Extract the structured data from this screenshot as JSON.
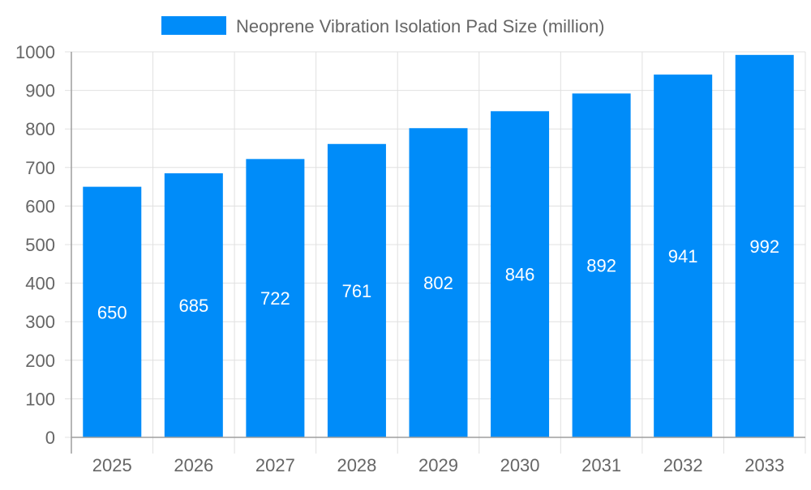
{
  "chart_data": {
    "type": "bar",
    "title": "",
    "xlabel": "",
    "ylabel": "",
    "categories": [
      "2025",
      "2026",
      "2027",
      "2028",
      "2029",
      "2030",
      "2031",
      "2032",
      "2033"
    ],
    "series": [
      {
        "name": "Neoprene Vibration Isolation Pad Size (million)",
        "values": [
          650,
          685,
          722,
          761,
          802,
          846,
          892,
          941,
          992
        ]
      }
    ],
    "ylim": [
      0,
      1000
    ],
    "yticks": [
      0,
      100,
      200,
      300,
      400,
      500,
      600,
      700,
      800,
      900,
      1000
    ],
    "grid": true,
    "legend": "top-center",
    "data_labels": true,
    "colors": {
      "bar": "#008cf9",
      "grid": "#e0e0e0",
      "axis": "#9e9e9e",
      "text": "#666666",
      "label": "#ffffff"
    }
  }
}
